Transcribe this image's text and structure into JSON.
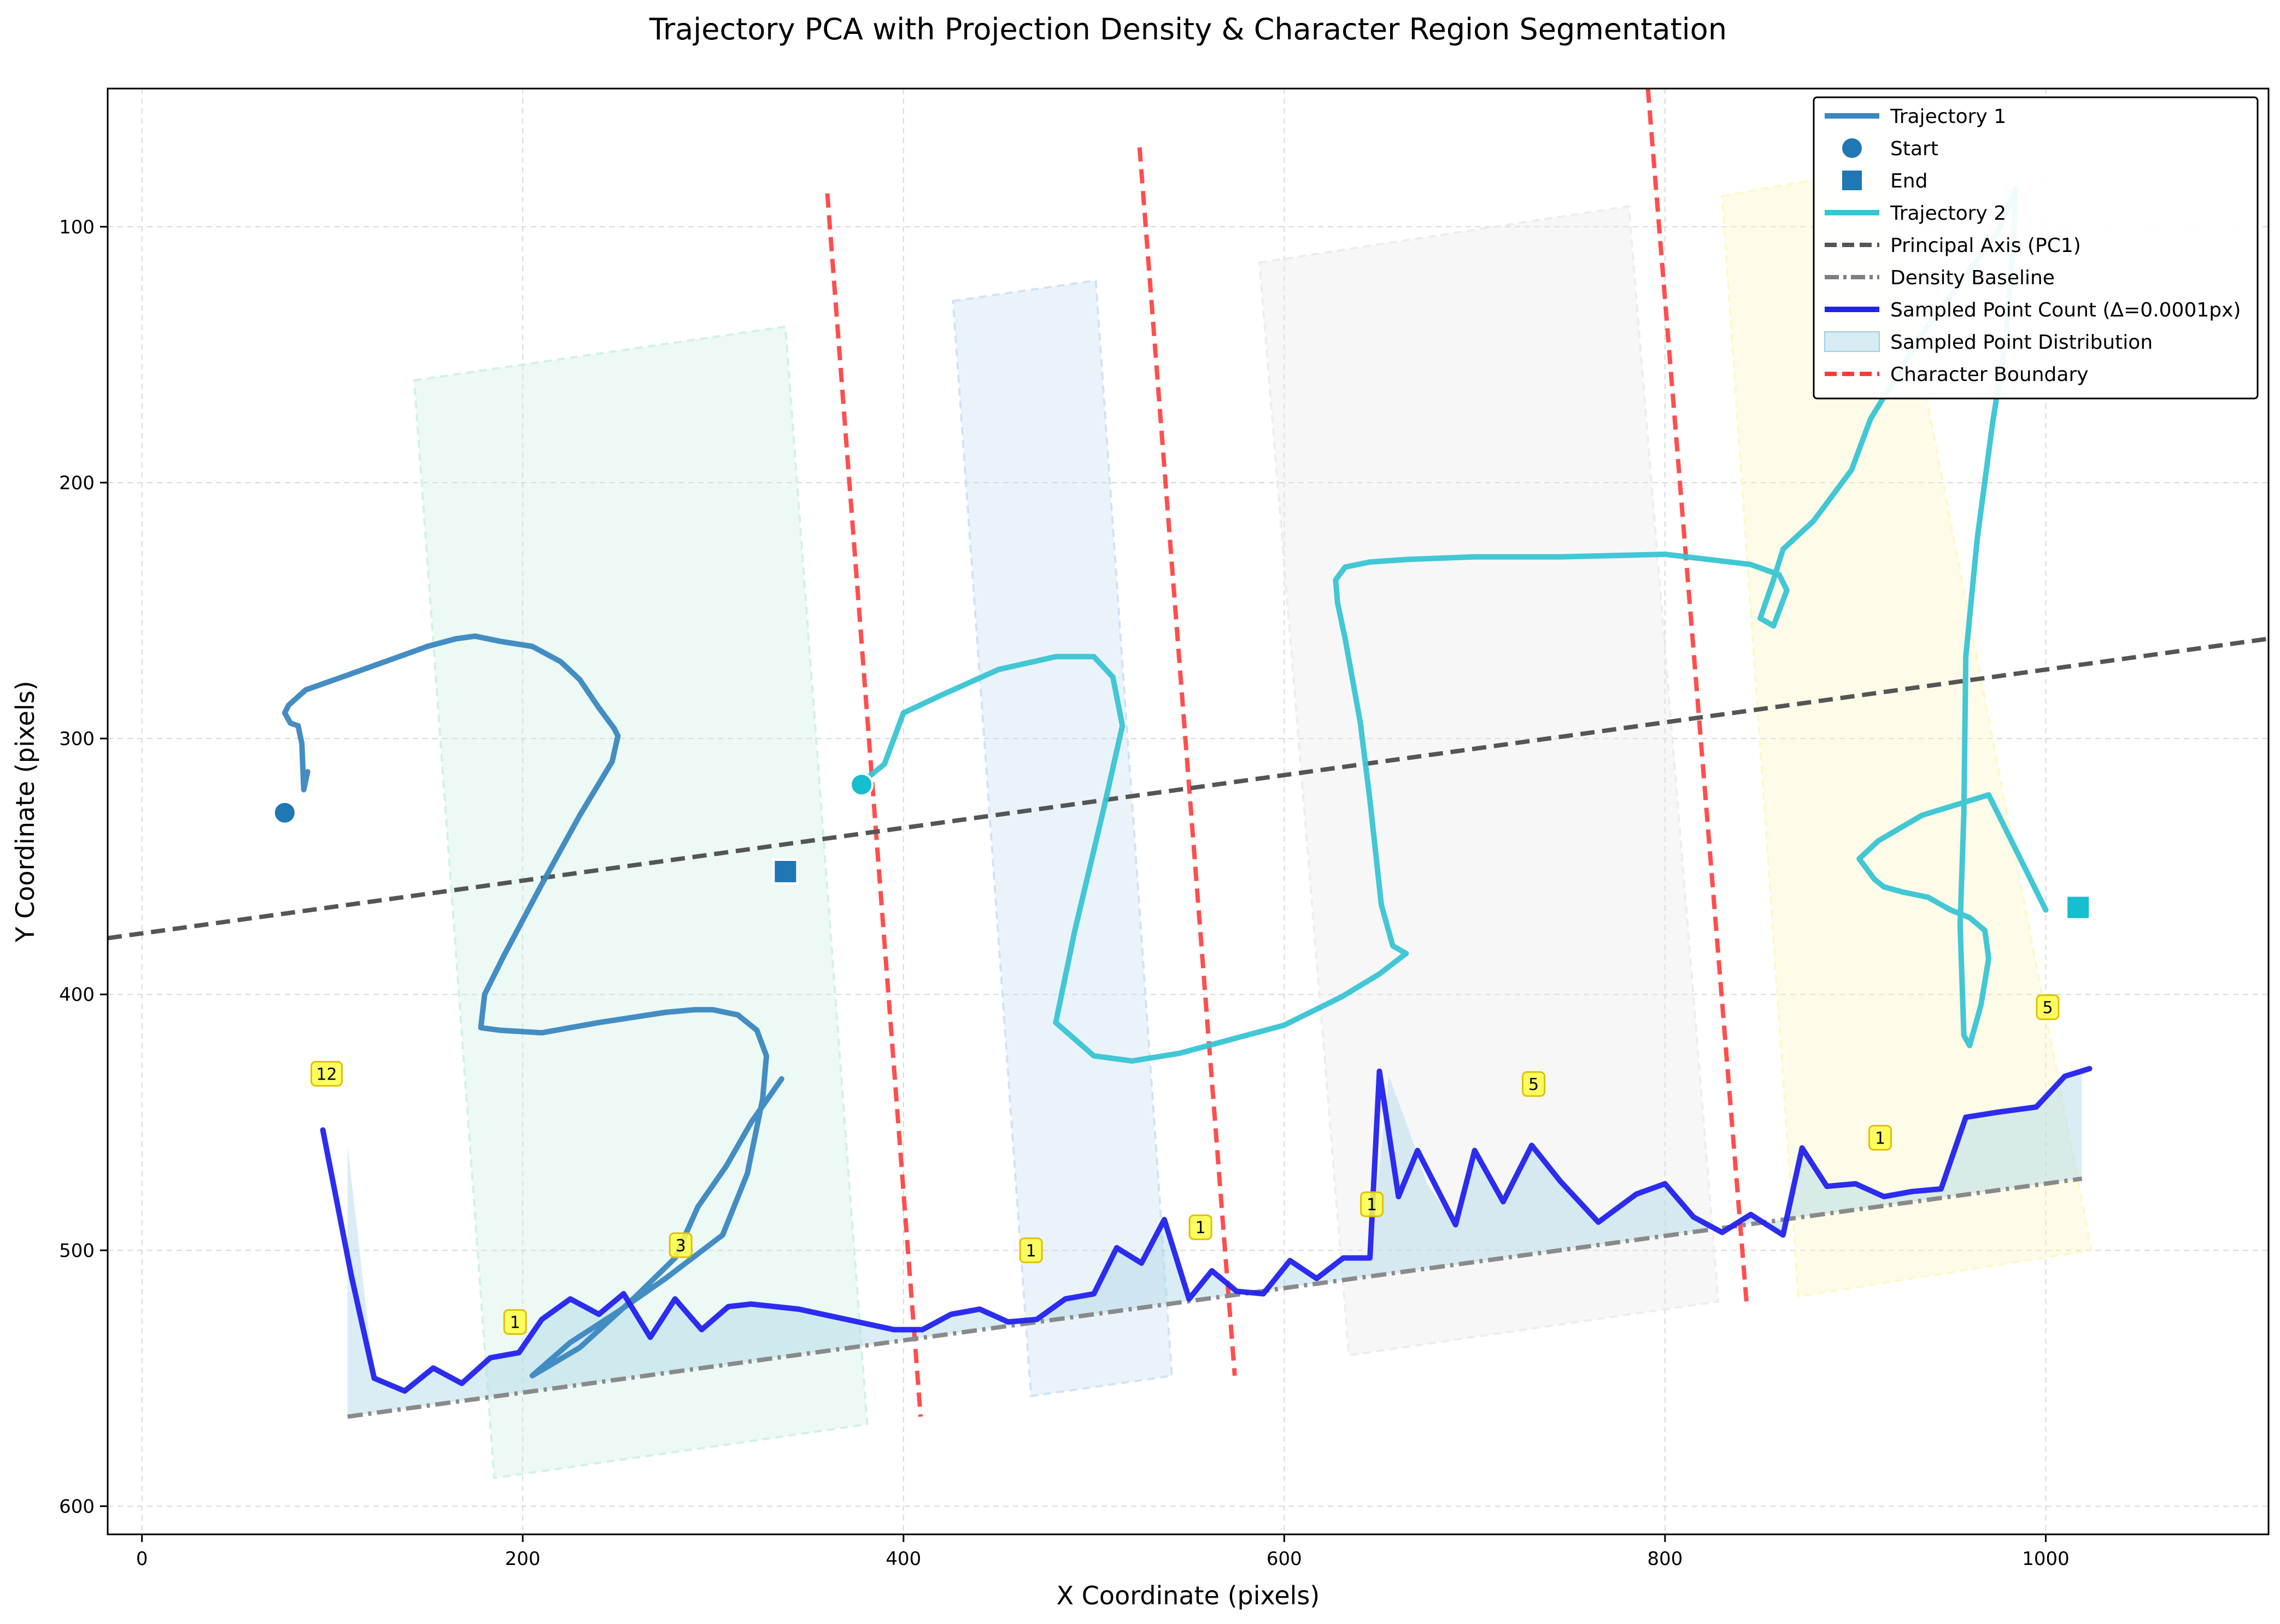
{
  "chart_data": {
    "type": "line",
    "title": "Trajectory PCA with Projection Density & Character Region Segmentation",
    "xlabel": "X Coordinate (pixels)",
    "ylabel": "Y Coordinate (pixels)",
    "xlim": [
      -18,
      1117
    ],
    "ylim": [
      611,
      46
    ],
    "y_inverted": true,
    "grid": true,
    "legend_position": "upper right",
    "xticks": [
      0,
      200,
      400,
      600,
      800,
      1000
    ],
    "yticks": [
      100,
      200,
      300,
      400,
      500,
      600
    ],
    "legend": [
      {
        "label": "Trajectory 1",
        "kind": "line",
        "color": "#3a87c0"
      },
      {
        "label": "Start",
        "kind": "circle",
        "color": "#1f77b4"
      },
      {
        "label": "End",
        "kind": "square",
        "color": "#1f77b4"
      },
      {
        "label": "Trajectory 2",
        "kind": "line",
        "color": "#38c4d3"
      },
      {
        "label": "Principal Axis (PC1)",
        "kind": "dashed",
        "color": "#555555"
      },
      {
        "label": "Density Baseline",
        "kind": "dashdot",
        "color": "#808080"
      },
      {
        "label": "Sampled Point Count (Δ=0.0001px)",
        "kind": "line",
        "color": "#2222ee"
      },
      {
        "label": "Sampled Point Distribution",
        "kind": "patch",
        "color": "#add8e6"
      },
      {
        "label": "Character Boundary",
        "kind": "dashed",
        "color": "#ff3b3b"
      }
    ],
    "regions": [
      {
        "color": "#c8eee2",
        "polygon": [
          [
            143,
            160
          ],
          [
            338,
            139
          ],
          [
            381,
            568
          ],
          [
            185,
            589
          ]
        ]
      },
      {
        "color": "#c7dcf2",
        "polygon": [
          [
            426,
            129
          ],
          [
            501,
            121
          ],
          [
            541,
            549
          ],
          [
            467,
            557
          ]
        ]
      },
      {
        "color": "#e8e8e8",
        "polygon": [
          [
            587,
            114
          ],
          [
            781,
            92
          ],
          [
            828,
            520
          ],
          [
            634,
            541
          ]
        ]
      },
      {
        "color": "#fcf6bd",
        "polygon": [
          [
            830,
            88
          ],
          [
            914,
            77
          ],
          [
            1024,
            500
          ],
          [
            870,
            518
          ]
        ]
      }
    ],
    "character_boundaries": [
      [
        [
          360,
          87
        ],
        [
          409,
          565
        ]
      ],
      [
        [
          524,
          69
        ],
        [
          574,
          549
        ]
      ],
      [
        [
          791,
          46
        ],
        [
          843,
          522
        ]
      ]
    ],
    "principal_axis": {
      "x": [
        -18,
        1117
      ],
      "y": [
        378,
        261
      ]
    },
    "density_baseline": {
      "x": [
        108,
        1019
      ],
      "y": [
        565,
        472
      ]
    },
    "series": [
      {
        "name": "Trajectory 1",
        "color": "#3a87c0",
        "x": [
          87,
          85,
          84,
          82,
          78,
          75,
          77,
          86,
          105,
          135,
          150,
          165,
          175,
          188,
          205,
          220,
          230,
          240,
          248,
          250,
          247,
          230,
          210,
          190,
          180,
          178,
          188,
          210,
          240,
          275,
          290,
          300,
          313,
          323,
          328,
          326,
          318,
          305,
          275,
          250,
          225,
          205,
          230,
          258,
          280,
          292,
          307,
          320,
          336
        ],
        "y": [
          313,
          320,
          302,
          295,
          294,
          290,
          287,
          281,
          276,
          268,
          264,
          261,
          260,
          262,
          264,
          270,
          277,
          288,
          296,
          299,
          309,
          330,
          357,
          385,
          400,
          413,
          414,
          415,
          411,
          407,
          406,
          406,
          408,
          414,
          424,
          441,
          470,
          494,
          511,
          524,
          536,
          549,
          538,
          519,
          503,
          483,
          467,
          450,
          433
        ],
        "start": [
          75,
          329
        ],
        "end": [
          338,
          352
        ]
      },
      {
        "name": "Trajectory 2",
        "color": "#38c4d3",
        "x": [
          380,
          390,
          400,
          420,
          450,
          480,
          500,
          510,
          515,
          505,
          490,
          480,
          500,
          520,
          545,
          570,
          600,
          630,
          650,
          664,
          657,
          651,
          645,
          640,
          632,
          628,
          627,
          632,
          645,
          665,
          700,
          745,
          800,
          845,
          860,
          864,
          857,
          850,
          857,
          862,
          878,
          898,
          908,
          922,
          935,
          957,
          975,
          984,
          983,
          979,
          972,
          964,
          958,
          957,
          955,
          957,
          960,
          966,
          970,
          968,
          960,
          950,
          938,
          925,
          915,
          910,
          902,
          912,
          935,
          970,
          1000
        ],
        "y": [
          316,
          310,
          290,
          283,
          273,
          268,
          268,
          276,
          295,
          328,
          375,
          411,
          424,
          426,
          423,
          418,
          412,
          401,
          392,
          384,
          381,
          365,
          324,
          294,
          261,
          247,
          238,
          233,
          231,
          230,
          229,
          229,
          228,
          232,
          236,
          242,
          256,
          253,
          238,
          226,
          215,
          195,
          175,
          158,
          142,
          120,
          102,
          85,
          106,
          144,
          177,
          222,
          268,
          329,
          373,
          416,
          420,
          404,
          386,
          375,
          370,
          367,
          362,
          360,
          358,
          355,
          347,
          340,
          330,
          322,
          367
        ],
        "start": [
          378,
          318
        ],
        "end": [
          1017,
          366
        ]
      },
      {
        "name": "Sampled Point Count (Δ=0.0001px)",
        "color": "#2222ee",
        "x": [
          95,
          110,
          122,
          138,
          153,
          168,
          183,
          198,
          210,
          225,
          240,
          253,
          267,
          280,
          294,
          308,
          320,
          345,
          370,
          395,
          410,
          425,
          440,
          455,
          470,
          485,
          500,
          512,
          525,
          537,
          550,
          562,
          575,
          589,
          603,
          617,
          631,
          645,
          650,
          660,
          670,
          690,
          700,
          715,
          730,
          745,
          765,
          785,
          800,
          815,
          830,
          845,
          862,
          872,
          885,
          900,
          915,
          930,
          945,
          958,
          975,
          995,
          1010,
          1023
        ],
        "y": [
          453,
          510,
          550,
          555,
          546,
          552,
          542,
          540,
          527,
          519,
          525,
          517,
          534,
          519,
          531,
          522,
          521,
          523,
          527,
          531,
          531,
          525,
          523,
          528,
          527,
          519,
          517,
          499,
          505,
          488,
          519,
          508,
          516,
          517,
          504,
          511,
          503,
          503,
          430,
          479,
          461,
          490,
          461,
          481,
          459,
          473,
          489,
          478,
          474,
          487,
          493,
          486,
          494,
          460,
          475,
          474,
          479,
          477,
          476,
          448,
          446,
          444,
          432,
          429
        ]
      }
    ],
    "distribution_fill": {
      "x": [
        108,
        122,
        138,
        153,
        168,
        183,
        198,
        210,
        225,
        240,
        253,
        267,
        280,
        294,
        308,
        320,
        345,
        370,
        395,
        410,
        425,
        440,
        455,
        470,
        485,
        500,
        512,
        525,
        537,
        550,
        562,
        575,
        589,
        603,
        617,
        631,
        645,
        655,
        665,
        675,
        690,
        700,
        715,
        730,
        745,
        765,
        785,
        800,
        815,
        830,
        845,
        862,
        872,
        885,
        900,
        915,
        930,
        945,
        958,
        975,
        995,
        1010,
        1019
      ],
      "y": [
        459,
        550,
        555,
        546,
        552,
        542,
        540,
        527,
        519,
        525,
        517,
        534,
        519,
        531,
        522,
        521,
        523,
        527,
        531,
        531,
        525,
        523,
        528,
        527,
        519,
        517,
        499,
        505,
        488,
        519,
        508,
        516,
        517,
        504,
        511,
        503,
        503,
        432,
        452,
        474,
        490,
        461,
        481,
        459,
        473,
        489,
        478,
        474,
        487,
        493,
        486,
        494,
        460,
        475,
        474,
        479,
        477,
        476,
        448,
        446,
        444,
        432,
        429
      ]
    },
    "annotations": [
      {
        "x": 97,
        "y": 431,
        "text": "12"
      },
      {
        "x": 196,
        "y": 528,
        "text": "1"
      },
      {
        "x": 283,
        "y": 498,
        "text": "3"
      },
      {
        "x": 467,
        "y": 500,
        "text": "1"
      },
      {
        "x": 556,
        "y": 491,
        "text": "1"
      },
      {
        "x": 646,
        "y": 482,
        "text": "1"
      },
      {
        "x": 731,
        "y": 435,
        "text": "5"
      },
      {
        "x": 913,
        "y": 456,
        "text": "1"
      },
      {
        "x": 1001,
        "y": 405,
        "text": "5"
      }
    ]
  }
}
